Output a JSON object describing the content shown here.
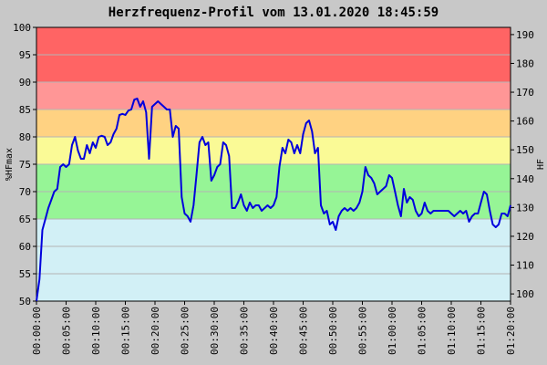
{
  "chart_data": {
    "type": "line",
    "title": "Herzfrequenz-Profil vom 13.01.2020 18:45:59",
    "ylabel_left": "%HFmax",
    "ylabel_right": "HF",
    "ylim_left": [
      50,
      100
    ],
    "ylim_right": [
      97.5,
      192.5
    ],
    "yticks_left": [
      50,
      55,
      60,
      65,
      70,
      75,
      80,
      85,
      90,
      95,
      100
    ],
    "yticks_right": [
      100,
      110,
      120,
      130,
      140,
      150,
      160,
      170,
      180,
      190
    ],
    "xlim_minutes": [
      0,
      80
    ],
    "xticks": [
      "00:00:00",
      "00:05:00",
      "00:10:00",
      "00:15:00",
      "00:20:00",
      "00:25:00",
      "00:30:00",
      "00:35:00",
      "00:40:00",
      "00:45:00",
      "00:50:00",
      "00:55:00",
      "01:00:00",
      "01:05:00",
      "01:10:00",
      "01:15:00",
      "01:20:00"
    ],
    "grid": true,
    "zones": [
      {
        "from": 50,
        "to": 65,
        "color": "#d2f0f6"
      },
      {
        "from": 65,
        "to": 75,
        "color": "#96f596"
      },
      {
        "from": 75,
        "to": 80,
        "color": "#fafa96"
      },
      {
        "from": 80,
        "to": 85,
        "color": "#ffd282"
      },
      {
        "from": 85,
        "to": 90,
        "color": "#ff9696"
      },
      {
        "from": 90,
        "to": 100,
        "color": "#ff6464"
      }
    ],
    "line_color": "#0000dd",
    "series": [
      {
        "x": [
          0,
          0.5,
          1,
          1.5,
          2,
          2.5,
          3,
          3.5,
          4,
          4.5,
          5,
          5.5,
          6,
          6.5,
          7,
          7.5,
          8,
          8.5,
          9,
          9.5,
          10,
          10.5,
          11,
          11.5,
          12,
          12.5,
          13,
          13.5,
          14,
          14.5,
          15,
          15.5,
          16,
          16.5,
          17,
          17.5,
          18,
          18.5,
          19,
          19.5,
          20,
          20.5,
          21,
          21.5,
          22,
          22.5,
          23,
          23.5,
          24,
          24.5,
          25,
          25.5,
          26,
          26.5,
          27,
          27.5,
          28,
          28.5,
          29,
          29.5,
          30,
          30.5,
          31,
          31.5,
          32,
          32.5,
          33,
          33.5,
          34,
          34.5,
          35,
          35.5,
          36,
          36.5,
          37,
          37.5,
          38,
          38.5,
          39,
          39.5,
          40,
          40.5,
          41,
          41.5,
          42,
          42.5,
          43,
          43.5,
          44,
          44.5,
          45,
          45.5,
          46,
          46.5,
          47,
          47.5,
          48,
          48.5,
          49,
          49.5,
          50,
          50.5,
          51,
          51.5,
          52,
          52.5,
          53,
          53.5,
          54,
          54.5,
          55,
          55.5,
          56,
          56.5,
          57,
          57.5,
          58,
          58.5,
          59,
          59.5,
          60,
          60.5,
          61,
          61.5,
          62,
          62.5,
          63,
          63.5,
          64,
          64.5,
          65,
          65.5,
          66,
          66.5,
          67,
          67.5,
          68,
          68.5,
          69,
          69.5,
          70,
          70.5,
          71,
          71.5,
          72,
          72.5,
          73,
          73.5,
          74,
          74.5,
          75,
          75.5,
          76,
          76.5,
          77,
          77.5,
          78,
          78.5,
          79,
          79.5,
          80
        ],
        "y": [
          50,
          54,
          63,
          65,
          67,
          68.5,
          70,
          70.5,
          74.5,
          75,
          74.5,
          75,
          78.5,
          80,
          77.5,
          76,
          76,
          78.5,
          77,
          79,
          78,
          80,
          80.2,
          80,
          78.5,
          79,
          80.5,
          81.5,
          84,
          84.2,
          84,
          84.8,
          85,
          86.8,
          87,
          85.5,
          86.5,
          84.5,
          76,
          85.5,
          86,
          86.5,
          86,
          85.5,
          85,
          85,
          80,
          82,
          81.5,
          69,
          66,
          65.5,
          64.5,
          67.5,
          73,
          79,
          80,
          78.5,
          79,
          72,
          73,
          74.5,
          75,
          79,
          78.5,
          76.5,
          67,
          67,
          68,
          69.5,
          67.5,
          66.5,
          68,
          67,
          67.5,
          67.5,
          66.5,
          67,
          67.5,
          67,
          67.5,
          69,
          74.5,
          78,
          77,
          79.5,
          79,
          77,
          78.5,
          77,
          80.5,
          82.5,
          83,
          81,
          77,
          78,
          67.5,
          66,
          66.5,
          64,
          64.5,
          63,
          65.5,
          66.5,
          67,
          66.5,
          67,
          66.5,
          67,
          68,
          70,
          74.5,
          73,
          72.5,
          71.5,
          69.5,
          70,
          70.5,
          71,
          73,
          72.5,
          70,
          67.5,
          65.5,
          70.5,
          68,
          69,
          68.5,
          66.5,
          65.5,
          66,
          68,
          66.5,
          66,
          66.5,
          66.5,
          66.5,
          66.5,
          66.5,
          66.5,
          66,
          65.5,
          66,
          66.5,
          66,
          66.5,
          64.5,
          65.5,
          66,
          66,
          68,
          70,
          69.5,
          66.5,
          64,
          63.5,
          64,
          66,
          66,
          65.5,
          67.5
        ]
      }
    ]
  }
}
